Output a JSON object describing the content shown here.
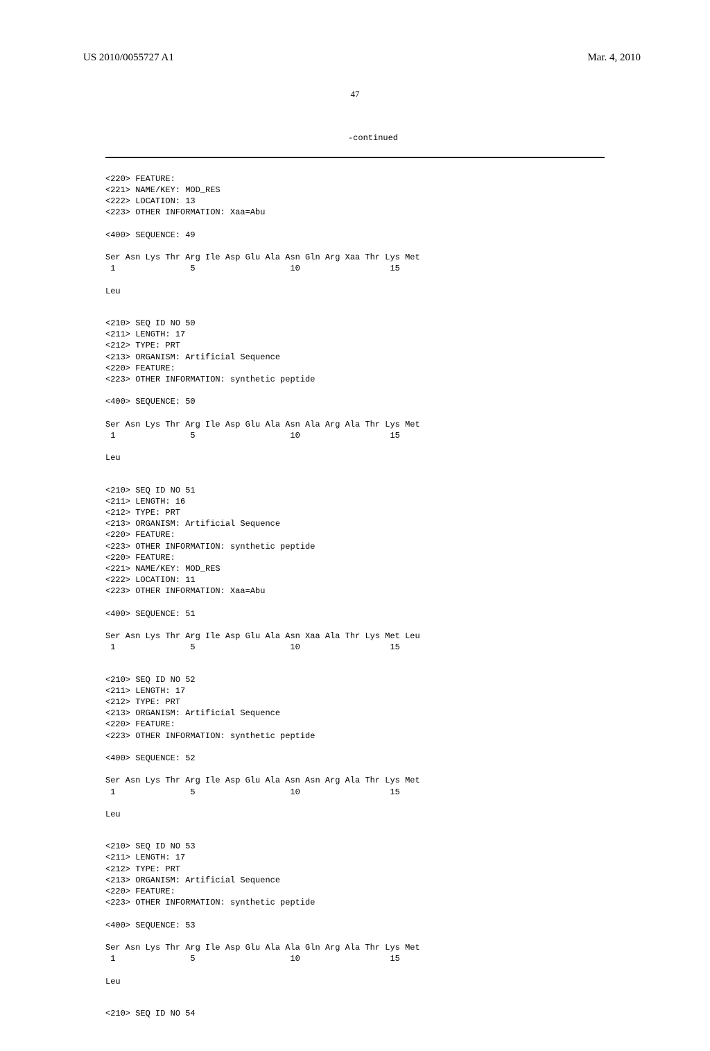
{
  "header": {
    "publication_number": "US 2010/0055727 A1",
    "publication_date": "Mar. 4, 2010"
  },
  "page_number": "47",
  "continued_label": "-continued",
  "sequences": [
    {
      "lines": [
        "<220> FEATURE:",
        "<221> NAME/KEY: MOD_RES",
        "<222> LOCATION: 13",
        "<223> OTHER INFORMATION: Xaa=Abu",
        "",
        "<400> SEQUENCE: 49",
        "",
        "Ser Asn Lys Thr Arg Ile Asp Glu Ala Asn Gln Arg Xaa Thr Lys Met",
        " 1               5                   10                  15",
        "",
        "Leu"
      ]
    },
    {
      "lines": [
        "<210> SEQ ID NO 50",
        "<211> LENGTH: 17",
        "<212> TYPE: PRT",
        "<213> ORGANISM: Artificial Sequence",
        "<220> FEATURE:",
        "<223> OTHER INFORMATION: synthetic peptide",
        "",
        "<400> SEQUENCE: 50",
        "",
        "Ser Asn Lys Thr Arg Ile Asp Glu Ala Asn Ala Arg Ala Thr Lys Met",
        " 1               5                   10                  15",
        "",
        "Leu"
      ]
    },
    {
      "lines": [
        "<210> SEQ ID NO 51",
        "<211> LENGTH: 16",
        "<212> TYPE: PRT",
        "<213> ORGANISM: Artificial Sequence",
        "<220> FEATURE:",
        "<223> OTHER INFORMATION: synthetic peptide",
        "<220> FEATURE:",
        "<221> NAME/KEY: MOD_RES",
        "<222> LOCATION: 11",
        "<223> OTHER INFORMATION: Xaa=Abu",
        "",
        "<400> SEQUENCE: 51",
        "",
        "Ser Asn Lys Thr Arg Ile Asp Glu Ala Asn Xaa Ala Thr Lys Met Leu",
        " 1               5                   10                  15"
      ]
    },
    {
      "lines": [
        "<210> SEQ ID NO 52",
        "<211> LENGTH: 17",
        "<212> TYPE: PRT",
        "<213> ORGANISM: Artificial Sequence",
        "<220> FEATURE:",
        "<223> OTHER INFORMATION: synthetic peptide",
        "",
        "<400> SEQUENCE: 52",
        "",
        "Ser Asn Lys Thr Arg Ile Asp Glu Ala Asn Asn Arg Ala Thr Lys Met",
        " 1               5                   10                  15",
        "",
        "Leu"
      ]
    },
    {
      "lines": [
        "<210> SEQ ID NO 53",
        "<211> LENGTH: 17",
        "<212> TYPE: PRT",
        "<213> ORGANISM: Artificial Sequence",
        "<220> FEATURE:",
        "<223> OTHER INFORMATION: synthetic peptide",
        "",
        "<400> SEQUENCE: 53",
        "",
        "Ser Asn Lys Thr Arg Ile Asp Glu Ala Ala Gln Arg Ala Thr Lys Met",
        " 1               5                   10                  15",
        "",
        "Leu"
      ]
    },
    {
      "lines": [
        "<210> SEQ ID NO 54"
      ]
    }
  ]
}
